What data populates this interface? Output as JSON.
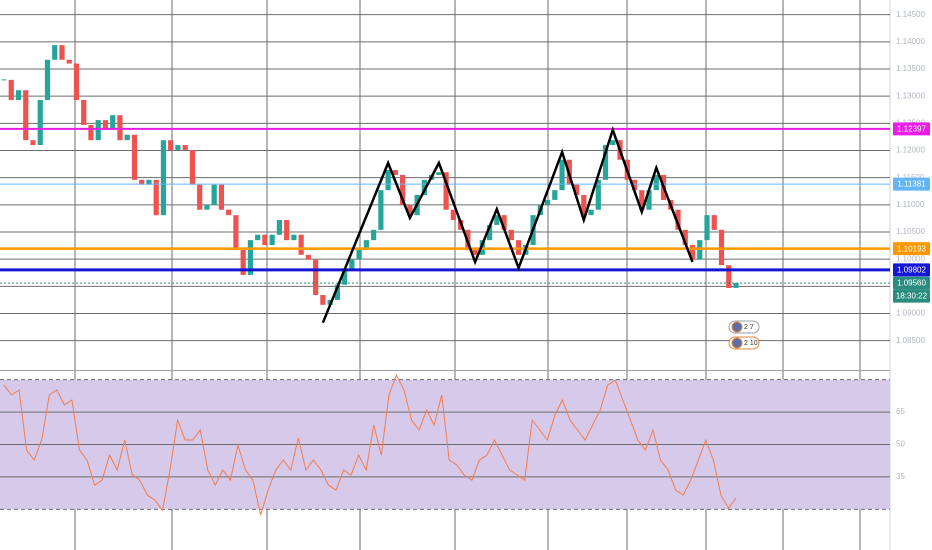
{
  "chart_data": [
    {
      "type": "candlestick",
      "close": [
        1.133,
        1.1293,
        1.1311,
        1.1219,
        1.121,
        1.1293,
        1.1367,
        1.1394,
        1.1367,
        1.136,
        1.1293,
        1.1247,
        1.1219,
        1.1256,
        1.1238,
        1.1265,
        1.1219,
        1.1229,
        1.1146,
        1.1137,
        1.1146,
        1.1081,
        1.1219,
        1.1201,
        1.121,
        1.1201,
        1.1137,
        1.1091,
        1.11,
        1.1137,
        1.1091,
        1.1081,
        1.1017,
        1.0971,
        1.1035,
        1.1045,
        1.1026,
        1.1045,
        1.1072,
        1.1035,
        1.1045,
        1.1008,
        1.0999,
        1.0934,
        1.0916,
        1.0925,
        1.0953,
        1.098,
        1.0999,
        1.1017,
        1.1035,
        1.1054,
        1.1127,
        1.1164,
        1.1155,
        1.11,
        1.1081,
        1.1118,
        1.1146,
        1.1155,
        1.116,
        1.1091,
        1.1072,
        1.1054,
        1.1017,
        1.1008,
        1.1035,
        1.1063,
        1.1081,
        1.1054,
        1.1035,
        1.1008,
        1.1026,
        1.1081,
        1.11,
        1.1109,
        1.1127,
        1.1183,
        1.1137,
        1.1118,
        1.1081,
        1.1091,
        1.1146,
        1.121,
        1.1219,
        1.1183,
        1.1146,
        1.1127,
        1.1091,
        1.1127,
        1.1155,
        1.1109,
        1.1091,
        1.1054,
        1.1026,
        1.0999,
        1.1035,
        1.1081,
        1.1054,
        1.0989,
        1.0947,
        1.0956
      ],
      "up_color": "#26a69a",
      "down_color": "#ef5350",
      "ylim": [
        1.0796,
        1.1477
      ],
      "yticks": [
        {
          "value": 1.085,
          "label": "1.08500"
        },
        {
          "value": 1.09,
          "label": "1.09000"
        },
        {
          "value": 1.095,
          "label": "1.09500"
        },
        {
          "value": 1.1,
          "label": "1.10000"
        },
        {
          "value": 1.105,
          "label": "1.10500"
        },
        {
          "value": 1.11,
          "label": "1.11000"
        },
        {
          "value": 1.115,
          "label": "1.11500"
        },
        {
          "value": 1.12,
          "label": "1.12000"
        },
        {
          "value": 1.125,
          "label": "1.12500"
        },
        {
          "value": 1.13,
          "label": "1.13000"
        },
        {
          "value": 1.135,
          "label": "1.13500"
        },
        {
          "value": 1.14,
          "label": "1.14000"
        },
        {
          "value": 1.145,
          "label": "1.14500"
        }
      ],
      "grid": true,
      "levels": [
        {
          "value": 1.12397,
          "color": "#e91ee6"
        },
        {
          "value": 1.11381,
          "color": "#64b5f6"
        },
        {
          "value": 1.10193,
          "color": "#ff9800"
        },
        {
          "value": 1.09802,
          "color": "#1515d6"
        },
        {
          "value": 1.0956,
          "label": "1.09560",
          "color": "#2a8c7e"
        }
      ],
      "countdown": "18:30:22",
      "zigzag": {
        "x": [
          44,
          53,
          56,
          60,
          65,
          68,
          71,
          77,
          80,
          84,
          88,
          90,
          95
        ],
        "values": [
          1.0883,
          1.1177,
          1.1076,
          1.1177,
          1.0995,
          1.1092,
          1.0984,
          1.1197,
          1.1072,
          1.1238,
          1.1087,
          1.1168,
          1.0995
        ],
        "color": "#000000"
      },
      "badges": [
        "2 7",
        "2 10"
      ]
    },
    {
      "type": "line",
      "values": [
        77.5,
        72.9,
        75.2,
        47.4,
        42.8,
        52.1,
        72.9,
        75.2,
        68.3,
        70.6,
        47.4,
        42.8,
        31.2,
        33.5,
        45.1,
        38.2,
        52.1,
        35.9,
        33.5,
        26.6,
        24.3,
        19.6,
        38.2,
        61.3,
        52.1,
        52.1,
        56.7,
        38.2,
        31.2,
        38.2,
        33.5,
        49.7,
        38.2,
        33.5,
        17.3,
        28.9,
        38.2,
        42.8,
        38.2,
        53.0,
        38.2,
        42.8,
        38.2,
        31.2,
        28.9,
        38.2,
        35.9,
        45.1,
        38.2,
        59.0,
        45.1,
        72.9,
        82.1,
        75.2,
        61.3,
        56.7,
        65.9,
        59.0,
        72.9,
        42.8,
        40.5,
        35.9,
        33.5,
        42.8,
        45.1,
        52.1,
        45.1,
        38.2,
        35.9,
        33.5,
        61.3,
        56.7,
        52.1,
        63.6,
        70.6,
        61.3,
        56.7,
        52.1,
        59.0,
        65.9,
        77.5,
        79.8,
        70.6,
        61.3,
        52.1,
        47.4,
        56.7,
        42.8,
        38.2,
        28.9,
        26.6,
        33.5,
        42.8,
        52.1,
        42.8,
        26.6,
        20.6,
        25.2
      ],
      "color": "#f57c4c",
      "ylim": [
        16,
        84
      ],
      "yticks": [
        35,
        50,
        65
      ],
      "band": [
        20,
        80
      ],
      "band_color": "#d6c9ea",
      "grid": true
    }
  ]
}
